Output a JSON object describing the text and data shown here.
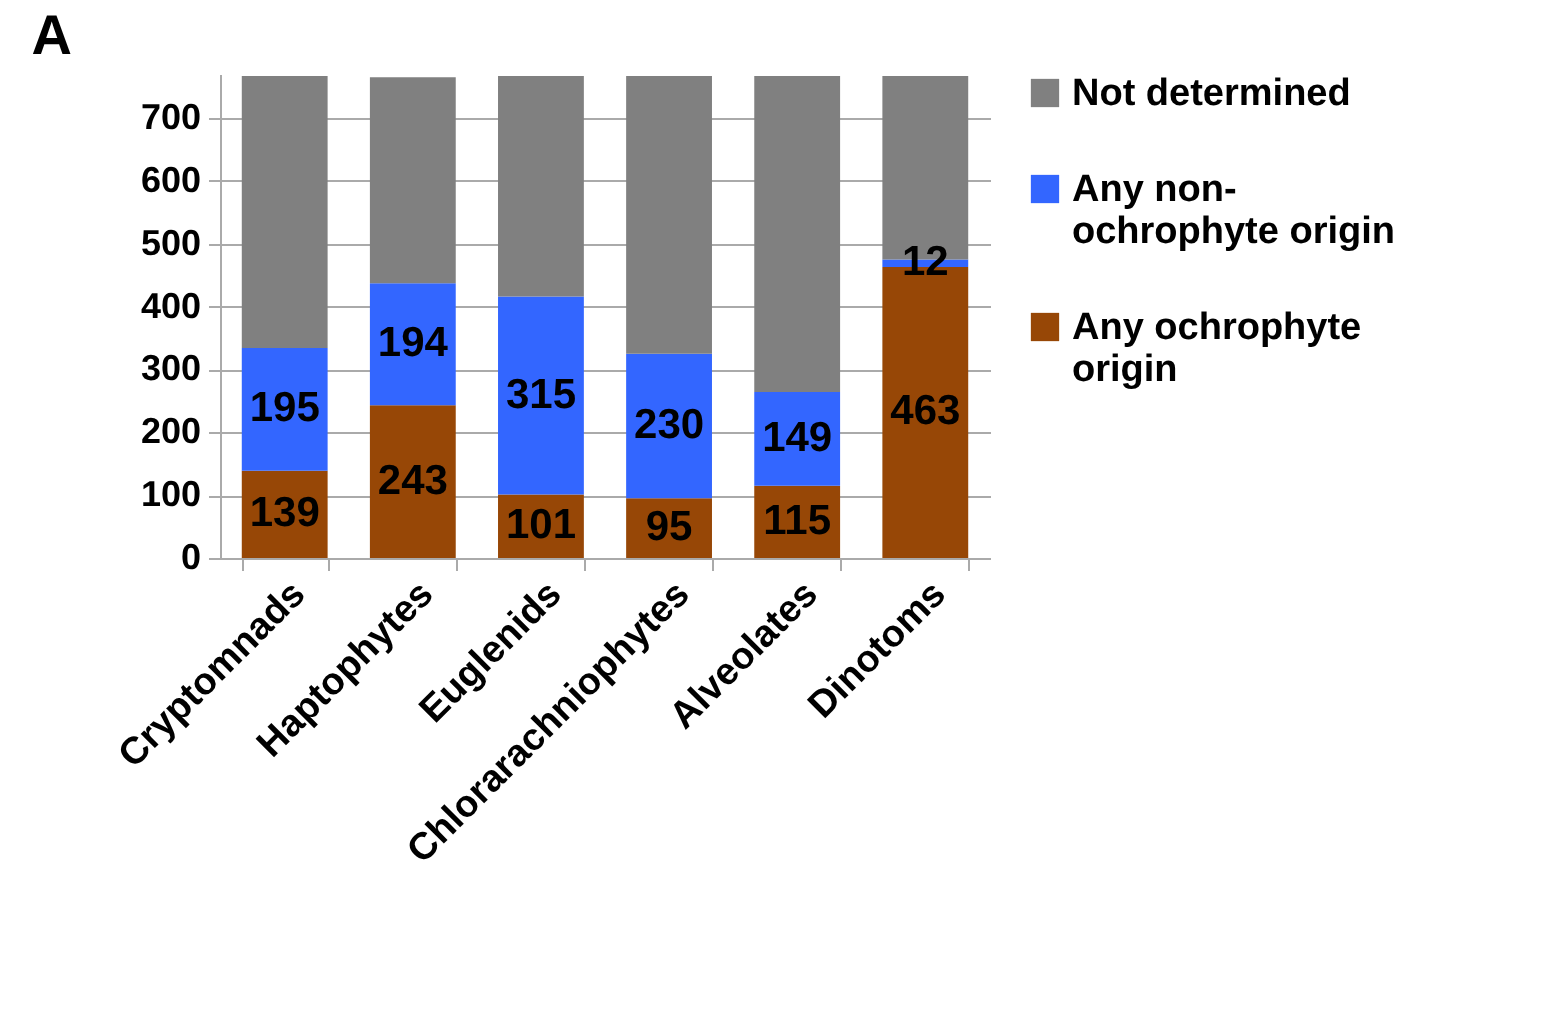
{
  "chart_data": {
    "type": "bar",
    "title": "A",
    "stacked": true,
    "categories": [
      "Cryptomnads",
      "Haptophytes",
      "Euglenids",
      "Chlorarachniophytes",
      "Alveolates",
      "Dinotoms"
    ],
    "series": [
      {
        "name": "Any ochrophyte origin",
        "color": "#974706",
        "values": [
          139,
          243,
          101,
          95,
          115,
          463
        ],
        "value_labels": [
          "139",
          "243",
          "101",
          "95",
          "115",
          "463"
        ]
      },
      {
        "name": "Any non-ochrophyte origin",
        "color": "#3366ff",
        "values": [
          195,
          194,
          315,
          230,
          149,
          12
        ],
        "value_labels": [
          "195",
          "194",
          "315",
          "230",
          "149",
          "12"
        ]
      },
      {
        "name": "Not determined",
        "color": "#808080",
        "values": [
          433,
          328,
          351,
          442,
          503,
          292
        ]
      }
    ],
    "ylim": [
      0,
      770
    ],
    "yticks": [
      0,
      100,
      200,
      300,
      400,
      500,
      600,
      700
    ],
    "grid": "y",
    "legend": "right"
  }
}
